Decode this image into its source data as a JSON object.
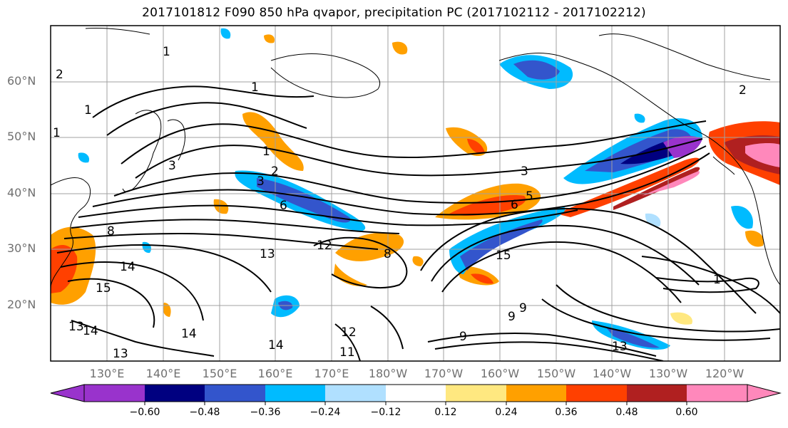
{
  "title": "2017101812 F090 850 hPa qvapor, precipitation PC (2017102112 - 2017102212)",
  "map": {
    "lat_labels": [
      "60°N",
      "50°N",
      "40°N",
      "30°N",
      "20°N"
    ],
    "lon_labels": [
      "130°E",
      "140°E",
      "150°E",
      "160°E",
      "170°E",
      "180°W",
      "170°W",
      "160°W",
      "150°W",
      "140°W",
      "130°W",
      "120°W"
    ],
    "gridlines": true,
    "extent": {
      "lon_min": 120,
      "lon_max": 250,
      "lat_min": 10,
      "lat_max": 70
    },
    "contour_labels": [
      "1",
      "1",
      "1",
      "1",
      "1",
      "1",
      "2",
      "2",
      "2",
      "3",
      "3",
      "3",
      "5",
      "6",
      "6",
      "8",
      "8",
      "9",
      "9",
      "9",
      "11",
      "12",
      "12",
      "13",
      "13",
      "13",
      "13",
      "14",
      "14",
      "14",
      "14",
      "15",
      "15"
    ]
  },
  "colorbar": {
    "tick_labels": [
      "−0.60",
      "−0.48",
      "−0.36",
      "−0.24",
      "−0.12",
      "0.12",
      "0.24",
      "0.36",
      "0.48",
      "0.60"
    ],
    "colors": [
      "#9933cc",
      "#000080",
      "#3355cc",
      "#00bbff",
      "#b0e0ff",
      "#ffffff",
      "#ffe880",
      "#ffa000",
      "#ff4000",
      "#b02020",
      "#ff88bb"
    ]
  }
}
